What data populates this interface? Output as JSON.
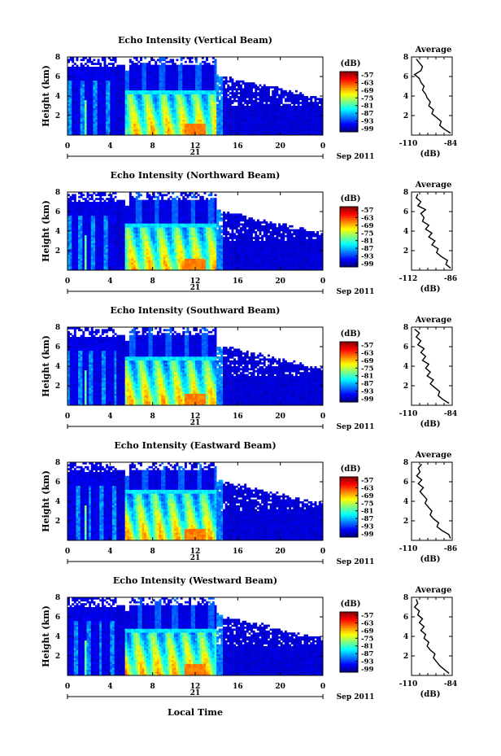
{
  "figure": {
    "x_axis_label": "Local Time",
    "date_label": "21",
    "month_label": "Sep 2011"
  },
  "chart_data": [
    {
      "type": "heatmap",
      "title": "Echo Intensity (Vertical Beam)",
      "ylabel": "Height (km)",
      "xlabel": "Local Time",
      "x_ticks": [
        "0",
        "4",
        "8",
        "12",
        "16",
        "20",
        "0"
      ],
      "y_ticks": [
        "2",
        "4",
        "6",
        "8"
      ],
      "xlim": [
        0,
        24
      ],
      "ylim": [
        0,
        8
      ],
      "colorbar": {
        "unit": "(dB)",
        "ticks": [
          "-57",
          "-63",
          "-69",
          "-75",
          "-81",
          "-87",
          "-93",
          "-99"
        ]
      },
      "melting_layer_km": 4.2,
      "average_profile": {
        "title": "Average",
        "xlabel": "(dB)",
        "x_ticks": [
          "-110",
          "-84"
        ],
        "y_ticks": [
          "2",
          "4",
          "6",
          "8"
        ],
        "xlim": [
          -110,
          -84
        ],
        "ylim": [
          0,
          8
        ],
        "height_km": [
          0.2,
          0.6,
          1.0,
          1.4,
          1.8,
          2.2,
          2.6,
          3.0,
          3.4,
          3.8,
          4.2,
          4.6,
          5.0,
          5.4,
          5.8,
          6.2,
          6.6,
          7.0,
          7.4,
          7.8
        ],
        "value_db": [
          -85,
          -89,
          -92,
          -91,
          -94,
          -97,
          -96,
          -99,
          -98,
          -100,
          -101,
          -103,
          -102,
          -104,
          -105,
          -108,
          -104,
          -103,
          -105,
          -107
        ]
      }
    },
    {
      "type": "heatmap",
      "title": "Echo Intensity (Northward Beam)",
      "ylabel": "Height (km)",
      "xlabel": "Local Time",
      "x_ticks": [
        "0",
        "4",
        "8",
        "12",
        "16",
        "20",
        "0"
      ],
      "y_ticks": [
        "2",
        "4",
        "6",
        "8"
      ],
      "xlim": [
        0,
        24
      ],
      "ylim": [
        0,
        8
      ],
      "colorbar": {
        "unit": "(dB)",
        "ticks": [
          "-57",
          "-63",
          "-69",
          "-75",
          "-81",
          "-87",
          "-93",
          "-99"
        ]
      },
      "melting_layer_km": 4.5,
      "average_profile": {
        "title": "Average",
        "xlabel": "(dB)",
        "x_ticks": [
          "-112",
          "-86"
        ],
        "y_ticks": [
          "2",
          "4",
          "6",
          "8"
        ],
        "xlim": [
          -112,
          -86
        ],
        "ylim": [
          0,
          8
        ],
        "height_km": [
          0.2,
          0.6,
          1.0,
          1.4,
          1.8,
          2.2,
          2.6,
          3.0,
          3.4,
          3.8,
          4.2,
          4.6,
          5.0,
          5.4,
          5.8,
          6.2,
          6.6,
          7.0,
          7.4,
          7.8
        ],
        "value_db": [
          -87,
          -90,
          -89,
          -93,
          -96,
          -95,
          -99,
          -97,
          -101,
          -99,
          -103,
          -101,
          -105,
          -104,
          -106,
          -103,
          -108,
          -106,
          -109,
          -108
        ]
      }
    },
    {
      "type": "heatmap",
      "title": "Echo Intensity (Southward Beam)",
      "ylabel": "Height (km)",
      "xlabel": "Local Time",
      "x_ticks": [
        "0",
        "4",
        "8",
        "12",
        "16",
        "20",
        "0"
      ],
      "y_ticks": [
        "2",
        "4",
        "6",
        "8"
      ],
      "xlim": [
        0,
        24
      ],
      "ylim": [
        0,
        8
      ],
      "colorbar": {
        "unit": "(dB)",
        "ticks": [
          "-57",
          "-63",
          "-69",
          "-75",
          "-81",
          "-87",
          "-93",
          "-99"
        ]
      },
      "melting_layer_km": 4.6,
      "average_profile": {
        "title": "Average",
        "xlabel": "(dB)",
        "x_ticks": [
          "-110",
          "-84"
        ],
        "y_ticks": [
          "2",
          "4",
          "6",
          "8"
        ],
        "xlim": [
          -110,
          -84
        ],
        "ylim": [
          0,
          8
        ],
        "height_km": [
          0.2,
          0.6,
          1.0,
          1.4,
          1.8,
          2.2,
          2.6,
          3.0,
          3.4,
          3.8,
          4.2,
          4.6,
          5.0,
          5.4,
          5.8,
          6.2,
          6.6,
          7.0,
          7.4,
          7.8
        ],
        "value_db": [
          -86,
          -90,
          -93,
          -92,
          -95,
          -98,
          -96,
          -100,
          -98,
          -101,
          -99,
          -103,
          -101,
          -104,
          -102,
          -106,
          -104,
          -107,
          -105,
          -108
        ]
      }
    },
    {
      "type": "heatmap",
      "title": "Echo Intensity (Eastward Beam)",
      "ylabel": "Height (km)",
      "xlabel": "Local Time",
      "x_ticks": [
        "0",
        "4",
        "8",
        "12",
        "16",
        "20",
        "0"
      ],
      "y_ticks": [
        "2",
        "4",
        "6",
        "8"
      ],
      "xlim": [
        0,
        24
      ],
      "ylim": [
        0,
        8
      ],
      "colorbar": {
        "unit": "(dB)",
        "ticks": [
          "-57",
          "-63",
          "-69",
          "-75",
          "-81",
          "-87",
          "-93",
          "-99"
        ]
      },
      "melting_layer_km": 4.8,
      "average_profile": {
        "title": "Average",
        "xlabel": "(dB)",
        "x_ticks": [
          "-110",
          "-86"
        ],
        "y_ticks": [
          "2",
          "4",
          "6",
          "8"
        ],
        "xlim": [
          -110,
          -86
        ],
        "ylim": [
          0,
          8
        ],
        "height_km": [
          0.2,
          0.6,
          1.0,
          1.4,
          1.8,
          2.2,
          2.6,
          3.0,
          3.4,
          3.8,
          4.2,
          4.6,
          5.0,
          5.4,
          5.8,
          6.2,
          6.6,
          7.0,
          7.4,
          7.8
        ],
        "value_db": [
          -87,
          -88,
          -92,
          -95,
          -94,
          -97,
          -99,
          -98,
          -100,
          -102,
          -101,
          -103,
          -105,
          -103,
          -106,
          -104,
          -107,
          -105,
          -106,
          -104
        ]
      }
    },
    {
      "type": "heatmap",
      "title": "Echo Intensity (Westward Beam)",
      "ylabel": "Height (km)",
      "xlabel": "Local Time",
      "x_ticks": [
        "0",
        "4",
        "8",
        "12",
        "16",
        "20",
        "0"
      ],
      "y_ticks": [
        "2",
        "4",
        "6",
        "8"
      ],
      "xlim": [
        0,
        24
      ],
      "ylim": [
        0,
        8
      ],
      "colorbar": {
        "unit": "(dB)",
        "ticks": [
          "-57",
          "-63",
          "-69",
          "-75",
          "-81",
          "-87",
          "-93",
          "-99"
        ]
      },
      "melting_layer_km": 4.5,
      "average_profile": {
        "title": "Average",
        "xlabel": "(dB)",
        "x_ticks": [
          "-110",
          "-84"
        ],
        "y_ticks": [
          "2",
          "4",
          "6",
          "8"
        ],
        "xlim": [
          -110,
          -84
        ],
        "ylim": [
          0,
          8
        ],
        "height_km": [
          0.2,
          0.6,
          1.0,
          1.4,
          1.8,
          2.2,
          2.6,
          3.0,
          3.4,
          3.8,
          4.2,
          4.6,
          5.0,
          5.4,
          5.8,
          6.2,
          6.6,
          7.0,
          7.4,
          7.8
        ],
        "value_db": [
          -86,
          -89,
          -92,
          -94,
          -96,
          -95,
          -98,
          -100,
          -99,
          -102,
          -101,
          -104,
          -102,
          -105,
          -103,
          -106,
          -105,
          -108,
          -106,
          -107
        ]
      }
    }
  ]
}
